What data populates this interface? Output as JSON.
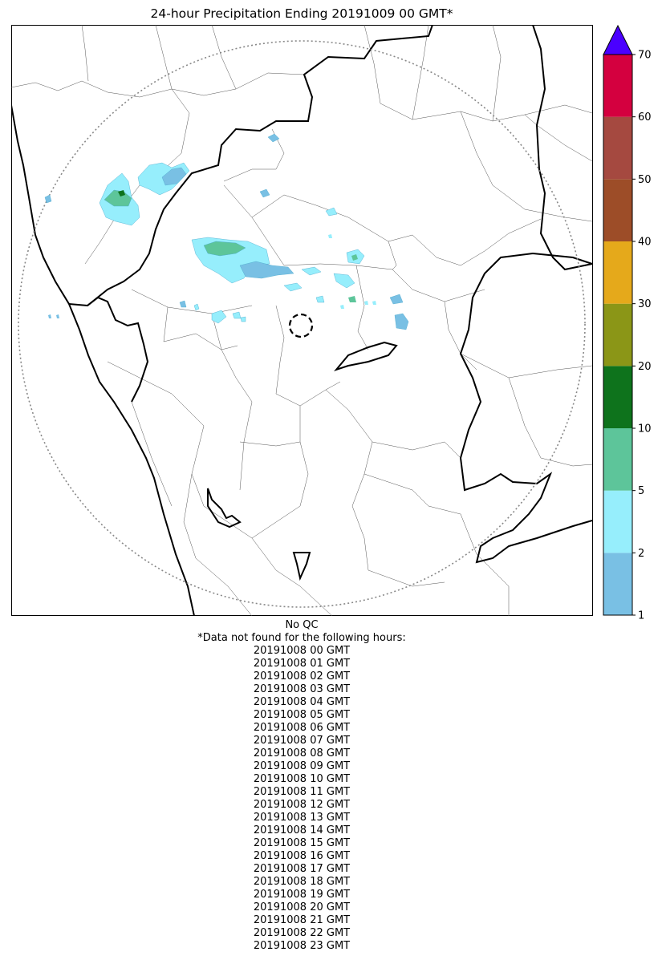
{
  "title": "24-hour Precipitation Ending 20191009 00 GMT*",
  "qc_note": "No QC",
  "missing_note": "*Data not found for the following hours:",
  "missing_hours": [
    "20191008 00 GMT",
    "20191008 01 GMT",
    "20191008 02 GMT",
    "20191008 03 GMT",
    "20191008 04 GMT",
    "20191008 05 GMT",
    "20191008 06 GMT",
    "20191008 07 GMT",
    "20191008 08 GMT",
    "20191008 09 GMT",
    "20191008 10 GMT",
    "20191008 11 GMT",
    "20191008 12 GMT",
    "20191008 13 GMT",
    "20191008 14 GMT",
    "20191008 15 GMT",
    "20191008 16 GMT",
    "20191008 17 GMT",
    "20191008 18 GMT",
    "20191008 19 GMT",
    "20191008 20 GMT",
    "20191008 21 GMT",
    "20191008 22 GMT",
    "20191008 23 GMT"
  ],
  "colorbar": {
    "ticks": [
      "1",
      "2",
      "5",
      "10",
      "20",
      "30",
      "40",
      "50",
      "60",
      "70"
    ],
    "colors": [
      "#79c0e4",
      "#96eefc",
      "#5dc59a",
      "#0e731c",
      "#8b9617",
      "#e5a91b",
      "#9d4d28",
      "#a54940",
      "#d4003f"
    ],
    "extend_color": "#4a00ff"
  },
  "colors": {
    "light_blue": "#79c0e4",
    "cyan": "#96eefc",
    "green": "#5dc59a",
    "dark_green": "#0e731c",
    "state_border": "#000000",
    "district_border": "#555555",
    "range_ring": "#888888"
  }
}
